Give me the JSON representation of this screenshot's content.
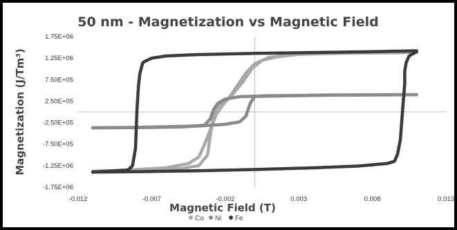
{
  "chart_data": {
    "type": "scatter",
    "title": "50 nm - Magnetization vs Magnetic Field",
    "xlabel": "Magnetic Field (T)",
    "ylabel": "Magnetization (J/Tm³)",
    "xlim": [
      -0.012,
      0.013
    ],
    "ylim": [
      -1750000,
      1750000
    ],
    "x_ticks": [
      -0.012,
      -0.007,
      -0.002,
      0.003,
      0.008,
      0.013
    ],
    "x_tick_labels": [
      "-0.012",
      "-0.007",
      "-0.002",
      "0.003",
      "0.008",
      "0.013"
    ],
    "y_ticks": [
      1750000,
      1250000,
      750000,
      250000,
      -250000,
      -750000,
      -1250000,
      -1750000
    ],
    "y_tick_labels": [
      "1.75E+06",
      "1.25E+06",
      "7.50E+05",
      "2.50E+05",
      "-2.50E+05",
      "-7.50E+05",
      "-1.25E+06",
      "-1.75E+06"
    ],
    "legend_position": "bottom",
    "grid": false,
    "series": [
      {
        "name": "Co",
        "color": "#a9a9a9",
        "branches": [
          [
            [
              -0.011,
              -1380000
            ],
            [
              -0.009,
              -1370000
            ],
            [
              -0.007,
              -1355000
            ],
            [
              -0.005,
              -1320000
            ],
            [
              -0.0038,
              -1250000
            ],
            [
              -0.0032,
              -1000000
            ],
            [
              -0.003,
              -500000
            ],
            [
              -0.0028,
              -100000
            ],
            [
              -0.0026,
              100000
            ],
            [
              -0.0022,
              200000
            ],
            [
              -0.0018,
              300000
            ],
            [
              -0.0012,
              600000
            ],
            [
              -0.0006,
              900000
            ],
            [
              0.0,
              1120000
            ],
            [
              0.001,
              1270000
            ],
            [
              0.003,
              1340000
            ],
            [
              0.006,
              1365000
            ],
            [
              0.009,
              1375000
            ],
            [
              0.011,
              1380000
            ]
          ],
          [
            [
              0.011,
              1380000
            ],
            [
              0.009,
              1375000
            ],
            [
              0.006,
              1365000
            ],
            [
              0.003,
              1340000
            ],
            [
              0.0015,
              1280000
            ],
            [
              0.0005,
              1200000
            ],
            [
              -0.0002,
              1000000
            ],
            [
              -0.0008,
              700000
            ],
            [
              -0.0014,
              450000
            ],
            [
              -0.0018,
              300000
            ],
            [
              -0.0022,
              150000
            ],
            [
              -0.0026,
              -50000
            ],
            [
              -0.003,
              -400000
            ],
            [
              -0.0034,
              -750000
            ],
            [
              -0.0038,
              -1050000
            ],
            [
              -0.0045,
              -1200000
            ],
            [
              -0.006,
              -1300000
            ],
            [
              -0.009,
              -1360000
            ],
            [
              -0.011,
              -1380000
            ]
          ]
        ]
      },
      {
        "name": "Ni",
        "color": "#8a8a8a",
        "branches": [
          [
            [
              -0.011,
              -370000
            ],
            [
              -0.008,
              -365000
            ],
            [
              -0.005,
              -350000
            ],
            [
              -0.0034,
              -310000
            ],
            [
              -0.003,
              -150000
            ],
            [
              -0.0028,
              50000
            ],
            [
              -0.0025,
              200000
            ],
            [
              -0.002,
              300000
            ],
            [
              -0.001,
              355000
            ],
            [
              0.001,
              375000
            ],
            [
              0.005,
              390000
            ],
            [
              0.011,
              400000
            ]
          ],
          [
            [
              0.011,
              400000
            ],
            [
              0.005,
              390000
            ],
            [
              0.0,
              360000
            ],
            [
              -0.0003,
              200000
            ],
            [
              -0.0006,
              -100000
            ],
            [
              -0.001,
              -230000
            ],
            [
              -0.002,
              -290000
            ],
            [
              -0.004,
              -330000
            ],
            [
              -0.008,
              -360000
            ],
            [
              -0.011,
              -370000
            ]
          ]
        ]
      },
      {
        "name": "Fe",
        "color": "#3a3a3a",
        "branches": [
          [
            [
              -0.011,
              -1400000
            ],
            [
              -0.008,
              -1390000
            ],
            [
              -0.004,
              -1370000
            ],
            [
              0.0,
              -1340000
            ],
            [
              0.004,
              -1300000
            ],
            [
              0.007,
              -1260000
            ],
            [
              0.009,
              -1200000
            ],
            [
              0.0095,
              -1150000
            ],
            [
              0.0097,
              -1000000
            ],
            [
              0.0099,
              -650000
            ],
            [
              0.01,
              -200000
            ],
            [
              0.0101,
              250000
            ],
            [
              0.0102,
              650000
            ],
            [
              0.0102,
              950000
            ],
            [
              0.0103,
              1150000
            ],
            [
              0.0105,
              1300000
            ],
            [
              0.011,
              1400000
            ]
          ],
          [
            [
              0.011,
              1420000
            ],
            [
              0.008,
              1400000
            ],
            [
              0.004,
              1380000
            ],
            [
              0.0,
              1360000
            ],
            [
              -0.004,
              1330000
            ],
            [
              -0.006,
              1300000
            ],
            [
              -0.007,
              1250000
            ],
            [
              -0.0076,
              1150000
            ],
            [
              -0.0078,
              900000
            ],
            [
              -0.0079,
              600000
            ],
            [
              -0.008,
              50000
            ],
            [
              -0.0081,
              -850000
            ],
            [
              -0.0083,
              -1250000
            ],
            [
              -0.0086,
              -1350000
            ],
            [
              -0.011,
              -1400000
            ]
          ]
        ]
      }
    ]
  }
}
